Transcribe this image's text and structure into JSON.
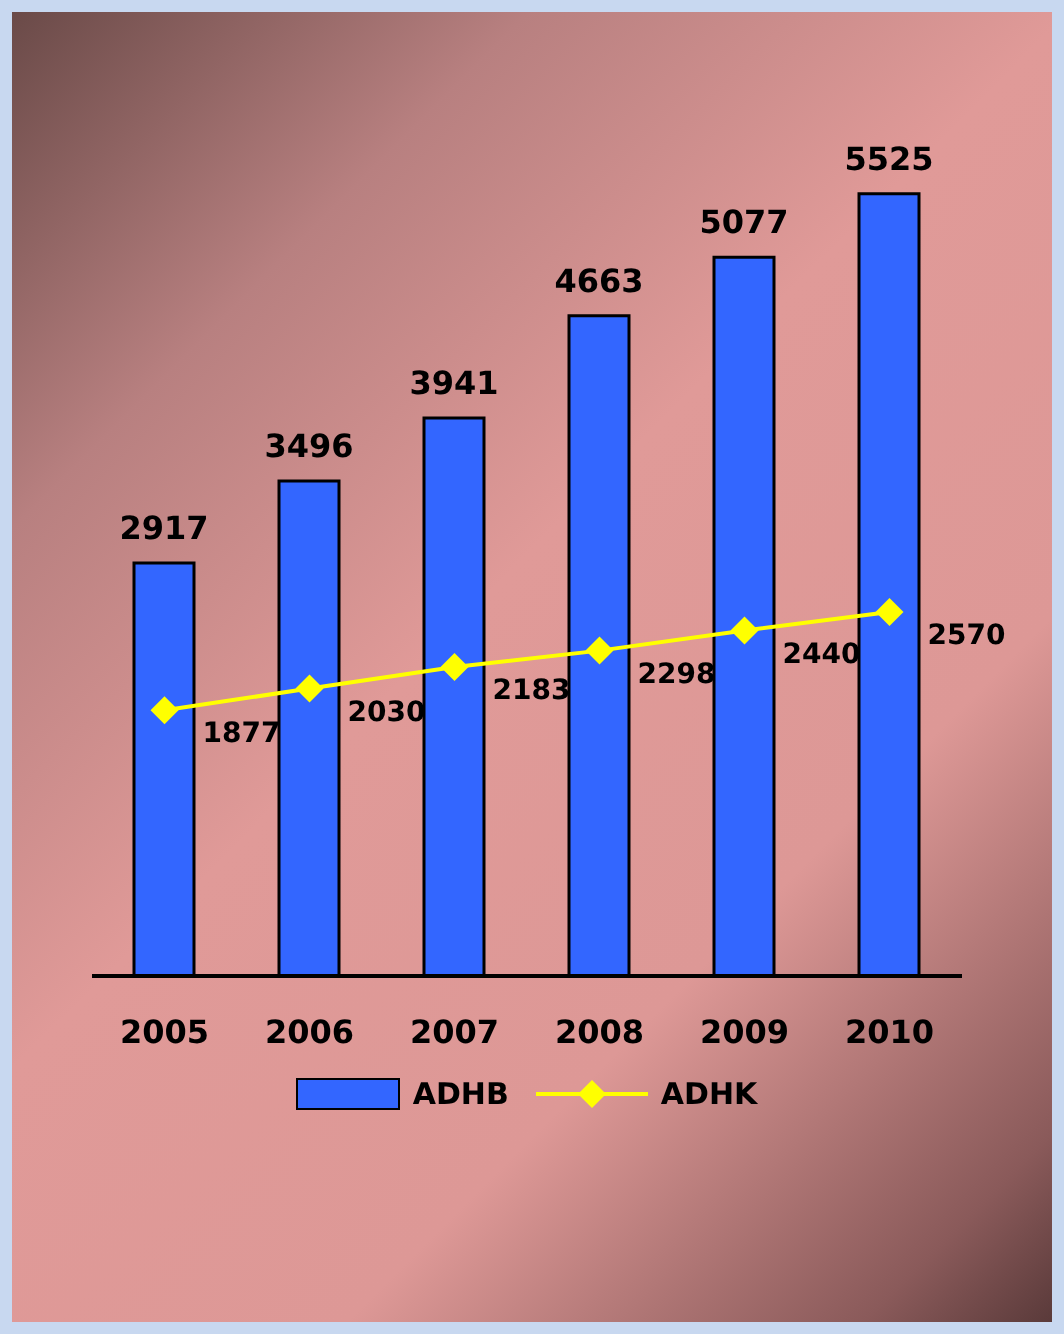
{
  "chart_data": {
    "type": "bar",
    "categories": [
      "2005",
      "2006",
      "2007",
      "2008",
      "2009",
      "2010"
    ],
    "series": [
      {
        "name": "ADHB",
        "color": "#3366ff",
        "values": [
          2917,
          3496,
          3941,
          4663,
          5077,
          5525
        ]
      },
      {
        "name": "ADHK",
        "type": "line",
        "color": "#ffff00",
        "values": [
          1877,
          2030,
          2183,
          2298,
          2440,
          2570
        ]
      }
    ],
    "data_labels": true,
    "legend": "bottom",
    "marker": "diamond"
  }
}
